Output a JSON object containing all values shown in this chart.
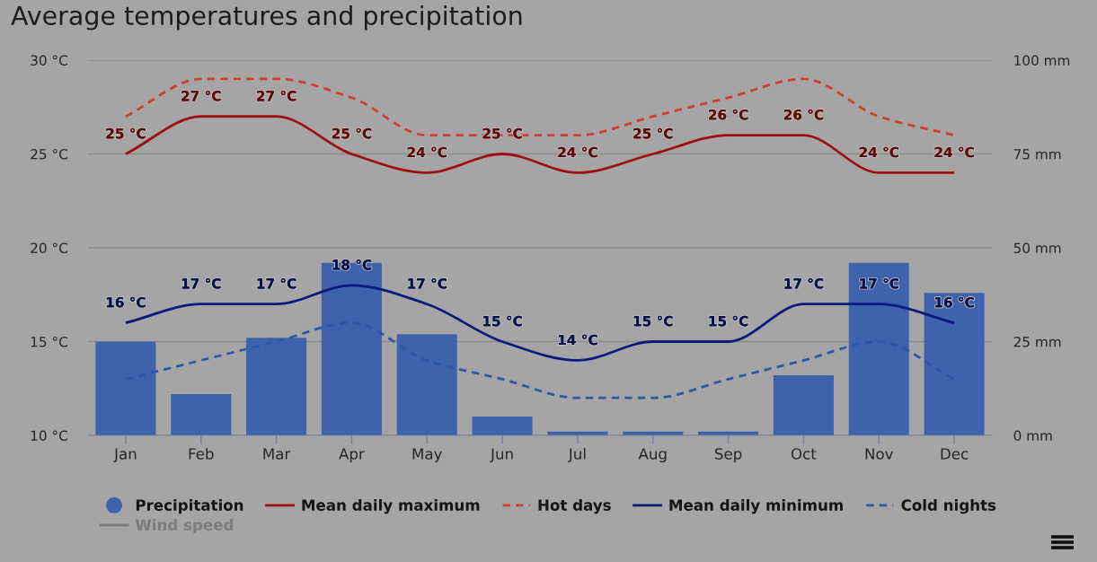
{
  "chart_data": {
    "type": "line",
    "title": "Average temperatures and precipitation",
    "categories": [
      "Jan",
      "Feb",
      "Mar",
      "Apr",
      "May",
      "Jun",
      "Jul",
      "Aug",
      "Sep",
      "Oct",
      "Nov",
      "Dec"
    ],
    "series": [
      {
        "name": "Precipitation",
        "type": "bar",
        "axis": "y2",
        "color": "#3f62ad",
        "values": [
          25,
          11,
          26,
          46,
          27,
          5,
          1,
          1,
          1,
          16,
          46,
          38
        ]
      },
      {
        "name": "Mean daily maximum",
        "color": "#9e1010",
        "values": [
          25,
          27,
          27,
          25,
          24,
          25,
          24,
          25,
          26,
          26,
          24,
          24
        ],
        "value_labels": [
          "25 °C",
          "27 °C",
          "27 °C",
          "25 °C",
          "24 °C",
          "25 °C",
          "24 °C",
          "25 °C",
          "26 °C",
          "26 °C",
          "24 °C",
          "24 °C"
        ]
      },
      {
        "name": "Hot days",
        "color": "#d0402f",
        "line_style": "dashed",
        "values": [
          27,
          29,
          29,
          28,
          26,
          26,
          26,
          27,
          28,
          29,
          27,
          26
        ]
      },
      {
        "name": "Mean daily minimum",
        "color": "#0b1a7c",
        "values": [
          16,
          17,
          17,
          18,
          17,
          15,
          14,
          15,
          15,
          17,
          17,
          16
        ],
        "value_labels": [
          "16 °C",
          "17 °C",
          "17 °C",
          "18 °C",
          "17 °C",
          "15 °C",
          "14 °C",
          "15 °C",
          "15 °C",
          "17 °C",
          "17 °C",
          "16 °C"
        ]
      },
      {
        "name": "Cold nights",
        "color": "#2d58aa",
        "line_style": "dashed",
        "values": [
          13,
          14,
          15,
          16,
          14,
          13,
          12,
          12,
          13,
          14,
          15,
          13
        ]
      },
      {
        "name": "Wind speed",
        "color": "#7c7c7c",
        "values": [
          null,
          null,
          null,
          null,
          null,
          null,
          null,
          null,
          null,
          null,
          null,
          null
        ]
      }
    ],
    "ylim": [
      10,
      30
    ],
    "yticks": [
      {
        "value": 10,
        "label": "10 °C"
      },
      {
        "value": 15,
        "label": "15 °C"
      },
      {
        "value": 20,
        "label": "20 °C"
      },
      {
        "value": 25,
        "label": "25 °C"
      },
      {
        "value": 30,
        "label": "30 °C"
      }
    ],
    "y2lim": [
      0,
      100
    ],
    "y2ticks": [
      {
        "value": 0,
        "label": "0 mm"
      },
      {
        "value": 25,
        "label": "25 mm"
      },
      {
        "value": 50,
        "label": "50 mm"
      },
      {
        "value": 75,
        "label": "75 mm"
      },
      {
        "value": 100,
        "label": "100 mm"
      }
    ],
    "grid": "y",
    "legend": "bottom",
    "marker": "none",
    "line_style": "solid"
  }
}
